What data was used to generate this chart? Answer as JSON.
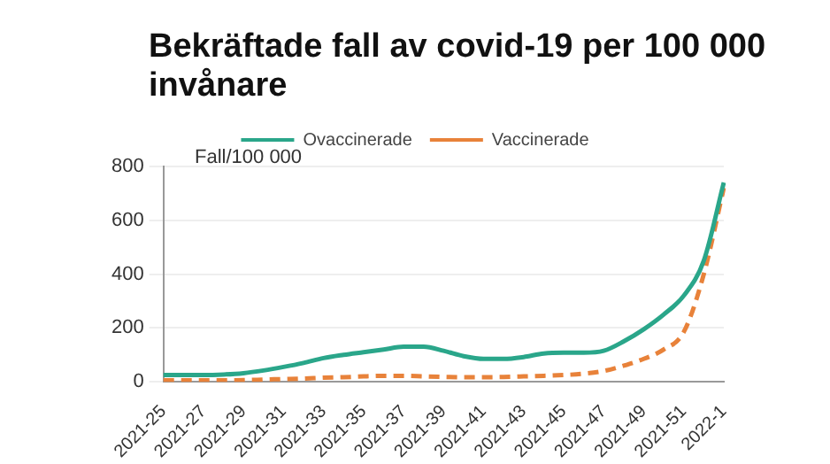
{
  "chart_data": {
    "type": "line",
    "title": "Bekräftade fall av covid-19 per 100 000 invånare",
    "ylabel": "Fall/100 000",
    "categories": [
      "2021-25",
      null,
      "2021-27",
      null,
      "2021-29",
      null,
      "2021-31",
      null,
      "2021-33",
      null,
      "2021-35",
      null,
      "2021-37",
      null,
      "2021-39",
      null,
      "2021-41",
      null,
      "2021-43",
      null,
      "2021-45",
      null,
      "2021-47",
      null,
      "2021-49",
      null,
      "2021-51",
      null,
      "2022-1"
    ],
    "series": [
      {
        "name": "Ovaccinerade",
        "color": "#2aa68a",
        "line_style": "solid",
        "values": [
          25,
          25,
          25,
          27,
          32,
          42,
          55,
          70,
          88,
          100,
          110,
          120,
          130,
          130,
          115,
          95,
          85,
          85,
          92,
          105,
          108,
          108,
          115,
          150,
          195,
          250,
          320,
          450,
          740
        ]
      },
      {
        "name": "Vaccinerade",
        "color": "#e8823a",
        "line_style": "dashed",
        "values": [
          5,
          5,
          5,
          5,
          6,
          8,
          10,
          12,
          15,
          17,
          20,
          22,
          22,
          20,
          18,
          17,
          17,
          18,
          20,
          22,
          25,
          30,
          40,
          60,
          85,
          120,
          185,
          400,
          720
        ]
      }
    ],
    "ylim": [
      0,
      800
    ],
    "yticks": [
      0,
      200,
      400,
      600,
      800
    ],
    "grid": "y",
    "legend": "top",
    "marker": "none"
  }
}
